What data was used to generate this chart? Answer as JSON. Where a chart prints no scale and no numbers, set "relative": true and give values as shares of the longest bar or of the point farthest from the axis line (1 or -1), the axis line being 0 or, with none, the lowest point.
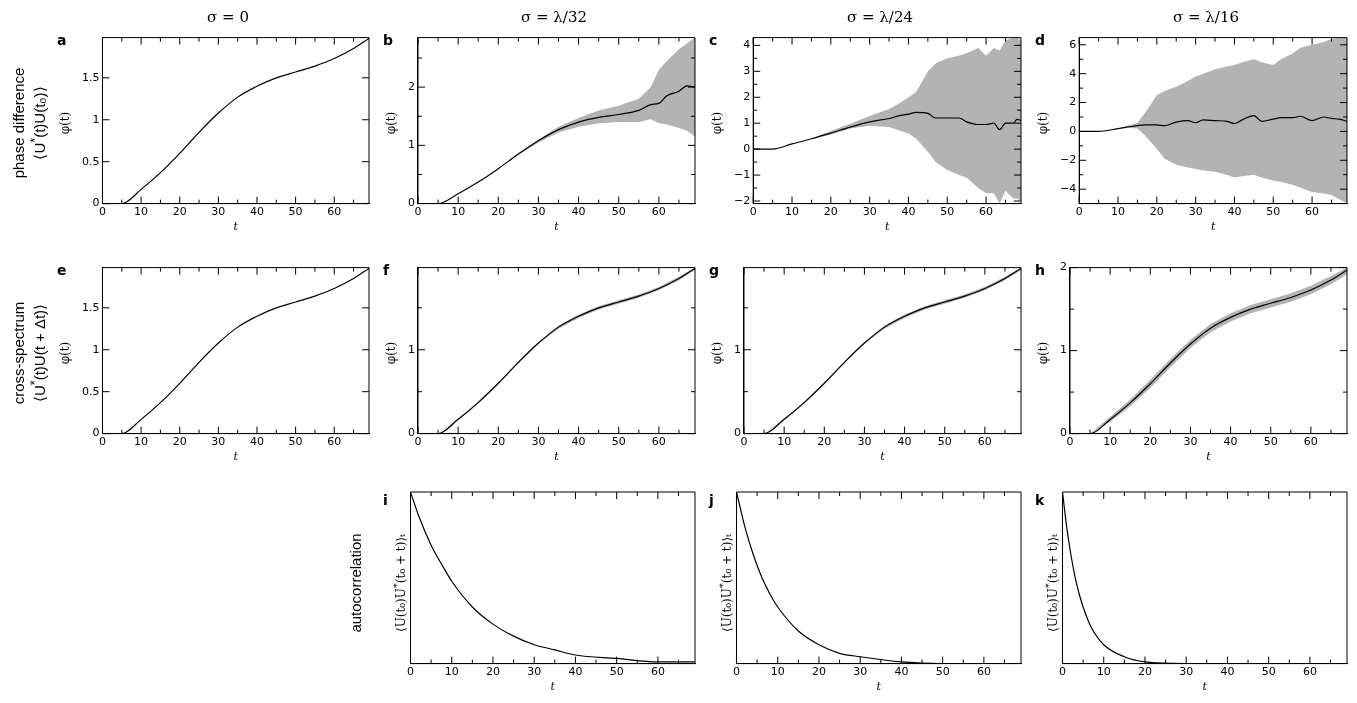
{
  "chart_data": [
    {
      "type": "line",
      "title": "σ = 0",
      "xlabel": "t",
      "ylabel": "φ(t)",
      "annotations": [
        "a",
        "phase difference",
        "⟨U$^{*}$(t)U(t₀)⟩"
      ],
      "x": [
        0,
        5,
        10,
        15,
        20,
        25,
        30,
        35,
        40,
        45,
        50,
        55,
        60,
        65,
        69
      ],
      "series": [
        {
          "color": "#000000",
          "values": [
            0,
            0,
            0.17,
            0.37,
            0.6,
            0.85,
            1.08,
            1.27,
            1.4,
            1.5,
            1.57,
            1.64,
            1.73,
            1.85,
            1.97
          ]
        }
      ],
      "xlim": [
        0,
        69
      ],
      "xticks": [
        0,
        {
          "value": 5,
          "label": null
        },
        10,
        {
          "value": 15,
          "label": null
        },
        20,
        {
          "value": 25,
          "label": null
        },
        30,
        {
          "value": 35,
          "label": null
        },
        40,
        {
          "value": 45,
          "label": null
        },
        50,
        {
          "value": 55,
          "label": null
        },
        60,
        {
          "value": 65,
          "label": null
        }
      ],
      "ylim": [
        0,
        1.98
      ],
      "yticks": [
        0,
        0.5,
        1,
        1.5
      ]
    },
    {
      "type": "line",
      "title": "σ = λ/32",
      "xlabel": "t",
      "ylabel": "φ(t)",
      "annotations": [
        "b"
      ],
      "x": [
        0,
        5,
        10,
        15,
        20,
        25,
        30,
        35,
        40,
        45,
        50,
        55,
        58,
        60,
        62,
        65,
        67,
        69
      ],
      "series": [
        {
          "color": "#000000",
          "values": [
            0,
            0,
            0.17,
            0.37,
            0.6,
            0.85,
            1.08,
            1.27,
            1.4,
            1.48,
            1.53,
            1.6,
            1.7,
            1.72,
            1.85,
            1.93,
            2.02,
            2.0
          ],
          "lower": [
            0,
            0,
            0.17,
            0.37,
            0.6,
            0.84,
            1.05,
            1.22,
            1.32,
            1.38,
            1.4,
            1.4,
            1.45,
            1.38,
            1.36,
            1.3,
            1.25,
            1.15
          ],
          "upper": [
            0,
            0,
            0.17,
            0.37,
            0.6,
            0.87,
            1.1,
            1.32,
            1.47,
            1.6,
            1.68,
            1.8,
            2.0,
            2.3,
            2.45,
            2.65,
            2.75,
            2.85
          ]
        }
      ],
      "xlim": [
        0,
        69
      ],
      "xticks": [
        0,
        {
          "value": 5,
          "label": null
        },
        10,
        {
          "value": 15,
          "label": null
        },
        20,
        {
          "value": 25,
          "label": null
        },
        30,
        {
          "value": 35,
          "label": null
        },
        40,
        {
          "value": 45,
          "label": null
        },
        50,
        {
          "value": 55,
          "label": null
        },
        60,
        {
          "value": 65,
          "label": null
        }
      ],
      "ylim": [
        0,
        2.85
      ],
      "yticks": [
        0,
        {
          "value": 0.5,
          "label": null
        },
        1,
        {
          "value": 1.5,
          "label": null
        },
        2,
        {
          "value": 2.5,
          "label": null
        }
      ]
    },
    {
      "type": "line",
      "title": "σ = λ/24",
      "xlabel": "t",
      "ylabel": "φ(t)",
      "annotations": [
        "c"
      ],
      "x": [
        0,
        5,
        10,
        15,
        20,
        25,
        30,
        35,
        38,
        40,
        42,
        45,
        47,
        50,
        53,
        55,
        58,
        60,
        62,
        63.5,
        65,
        67,
        68,
        69
      ],
      "series": [
        {
          "color": "#000000",
          "values": [
            0,
            0,
            0.2,
            0.4,
            0.62,
            0.85,
            1.05,
            1.18,
            1.3,
            1.35,
            1.42,
            1.38,
            1.2,
            1.2,
            1.2,
            1.05,
            0.95,
            0.95,
            1.0,
            0.75,
            1.0,
            1.0,
            1.15,
            1.1
          ],
          "lower": [
            0,
            0,
            0.2,
            0.4,
            0.55,
            0.8,
            0.9,
            0.85,
            0.7,
            0.6,
            0.4,
            -0.1,
            -0.5,
            -0.8,
            -1.0,
            -1.1,
            -1.5,
            -1.7,
            -1.7,
            -2.1,
            -1.6,
            -1.9,
            -1.9,
            -2.0
          ],
          "upper": [
            0,
            0,
            0.2,
            0.4,
            0.7,
            0.98,
            1.28,
            1.55,
            1.8,
            2.0,
            2.2,
            3.0,
            3.3,
            3.5,
            3.6,
            3.7,
            3.9,
            3.6,
            3.9,
            3.8,
            4.2,
            4.3,
            4.3,
            4.2
          ]
        }
      ],
      "xlim": [
        0,
        69
      ],
      "xticks": [
        0,
        {
          "value": 5,
          "label": null
        },
        10,
        {
          "value": 15,
          "label": null
        },
        20,
        {
          "value": 25,
          "label": null
        },
        30,
        {
          "value": 35,
          "label": null
        },
        40,
        {
          "value": 45,
          "label": null
        },
        50,
        {
          "value": 55,
          "label": null
        },
        60,
        {
          "value": 65,
          "label": null
        }
      ],
      "ylim": [
        -2.1,
        4.3
      ],
      "yticks": [
        -2,
        {
          "value": -1.5,
          "label": null
        },
        -1,
        {
          "value": -0.5,
          "label": null
        },
        0,
        {
          "value": 0.5,
          "label": null
        },
        1,
        {
          "value": 1.5,
          "label": null
        },
        2,
        {
          "value": 2.5,
          "label": null
        },
        3,
        {
          "value": 3.5,
          "label": null
        },
        4
      ]
    },
    {
      "type": "line",
      "title": "σ = λ/16",
      "xlabel": "t",
      "ylabel": "φ(t)",
      "annotations": [
        "d"
      ],
      "x": [
        0,
        5,
        10,
        12,
        15,
        17,
        20,
        22,
        25,
        28,
        30,
        32,
        35,
        38,
        40,
        42,
        45,
        47,
        50,
        52,
        55,
        57,
        60,
        63,
        65,
        67,
        69
      ],
      "series": [
        {
          "color": "#000000",
          "values": [
            0,
            0,
            0.2,
            0.28,
            0.4,
            0.45,
            0.45,
            0.4,
            0.65,
            0.75,
            0.6,
            0.8,
            0.75,
            0.7,
            0.55,
            0.8,
            1.1,
            0.7,
            0.85,
            0.95,
            0.95,
            1.05,
            0.75,
            1.0,
            0.9,
            0.85,
            0.7
          ],
          "lower": [
            0,
            0,
            0.2,
            0.25,
            0.2,
            -0.3,
            -1.2,
            -1.9,
            -2.3,
            -2.5,
            -2.6,
            -2.7,
            -2.8,
            -3.0,
            -3.2,
            -3.1,
            -3.0,
            -3.2,
            -3.4,
            -3.5,
            -3.7,
            -3.9,
            -4.2,
            -4.3,
            -4.4,
            -4.7,
            -5.0
          ],
          "upper": [
            0,
            0,
            0.2,
            0.35,
            0.6,
            1.3,
            2.5,
            2.8,
            3.1,
            3.5,
            3.8,
            4.0,
            4.3,
            4.5,
            4.6,
            4.8,
            5.0,
            4.8,
            4.6,
            5.0,
            5.4,
            5.8,
            6.0,
            6.2,
            6.4,
            6.5,
            6.5
          ]
        }
      ],
      "xlim": [
        0,
        69
      ],
      "xticks": [
        0,
        {
          "value": 5,
          "label": null
        },
        10,
        {
          "value": 15,
          "label": null
        },
        20,
        {
          "value": 25,
          "label": null
        },
        30,
        {
          "value": 35,
          "label": null
        },
        40,
        {
          "value": 45,
          "label": null
        },
        50,
        {
          "value": 55,
          "label": null
        },
        60,
        {
          "value": 65,
          "label": null
        }
      ],
      "ylim": [
        -5,
        6.5
      ],
      "yticks": [
        -4,
        {
          "value": -3,
          "label": null
        },
        -2,
        {
          "value": -1,
          "label": null
        },
        0,
        {
          "value": 1,
          "label": null
        },
        2,
        {
          "value": 3,
          "label": null
        },
        4,
        {
          "value": 5,
          "label": null
        },
        6
      ]
    },
    {
      "type": "line",
      "xlabel": "t",
      "ylabel": "φ(t)",
      "annotations": [
        "e",
        "cross-spectrum",
        "⟨U$^{*}$(t)U(t + Δt)⟩"
      ],
      "x": [
        0,
        5,
        10,
        15,
        20,
        25,
        30,
        35,
        40,
        45,
        50,
        55,
        60,
        65,
        69
      ],
      "series": [
        {
          "color": "#000000",
          "values": [
            0,
            0,
            0.17,
            0.37,
            0.6,
            0.85,
            1.08,
            1.27,
            1.4,
            1.5,
            1.57,
            1.64,
            1.73,
            1.85,
            1.97
          ]
        }
      ],
      "xlim": [
        0,
        69
      ],
      "xticks": [
        0,
        {
          "value": 5,
          "label": null
        },
        10,
        {
          "value": 15,
          "label": null
        },
        20,
        {
          "value": 25,
          "label": null
        },
        30,
        {
          "value": 35,
          "label": null
        },
        40,
        {
          "value": 45,
          "label": null
        },
        50,
        {
          "value": 55,
          "label": null
        },
        60,
        {
          "value": 65,
          "label": null
        }
      ],
      "ylim": [
        0,
        1.98
      ],
      "yticks": [
        0,
        0.5,
        1,
        1.5
      ]
    },
    {
      "type": "line",
      "xlabel": "t",
      "ylabel": "φ(t)",
      "annotations": [
        "f"
      ],
      "x": [
        0,
        5,
        10,
        15,
        20,
        25,
        30,
        35,
        40,
        45,
        50,
        55,
        60,
        65,
        69
      ],
      "series": [
        {
          "color": "#000000",
          "values": [
            0,
            0,
            0.17,
            0.37,
            0.6,
            0.85,
            1.08,
            1.27,
            1.4,
            1.5,
            1.57,
            1.64,
            1.73,
            1.85,
            1.97
          ],
          "lower": [
            0,
            0,
            0.16,
            0.36,
            0.59,
            0.84,
            1.07,
            1.25,
            1.38,
            1.48,
            1.55,
            1.62,
            1.71,
            1.83,
            1.95
          ],
          "upper": [
            0,
            0,
            0.18,
            0.38,
            0.61,
            0.86,
            1.09,
            1.29,
            1.42,
            1.52,
            1.59,
            1.66,
            1.75,
            1.87,
            1.98
          ]
        }
      ],
      "xlim": [
        0,
        69
      ],
      "xticks": [
        0,
        {
          "value": 5,
          "label": null
        },
        10,
        {
          "value": 15,
          "label": null
        },
        20,
        {
          "value": 25,
          "label": null
        },
        30,
        {
          "value": 35,
          "label": null
        },
        40,
        {
          "value": 45,
          "label": null
        },
        50,
        {
          "value": 55,
          "label": null
        },
        60,
        {
          "value": 65,
          "label": null
        }
      ],
      "ylim": [
        0,
        1.98
      ],
      "yticks": [
        0,
        {
          "value": 0.5,
          "label": null
        },
        1,
        {
          "value": 1.5,
          "label": null
        }
      ]
    },
    {
      "type": "line",
      "xlabel": "t",
      "ylabel": "φ(t)",
      "annotations": [
        "g"
      ],
      "x": [
        0,
        5,
        10,
        15,
        20,
        25,
        30,
        35,
        40,
        45,
        50,
        55,
        60,
        65,
        69
      ],
      "series": [
        {
          "color": "#000000",
          "values": [
            0,
            0,
            0.17,
            0.37,
            0.6,
            0.85,
            1.08,
            1.27,
            1.4,
            1.5,
            1.57,
            1.64,
            1.73,
            1.85,
            1.97
          ],
          "lower": [
            0,
            0,
            0.16,
            0.36,
            0.59,
            0.84,
            1.07,
            1.25,
            1.38,
            1.48,
            1.55,
            1.62,
            1.71,
            1.83,
            1.95
          ],
          "upper": [
            0,
            0,
            0.18,
            0.38,
            0.61,
            0.86,
            1.09,
            1.29,
            1.42,
            1.52,
            1.59,
            1.66,
            1.75,
            1.87,
            1.98
          ]
        }
      ],
      "xlim": [
        0,
        69
      ],
      "xticks": [
        0,
        {
          "value": 5,
          "label": null
        },
        10,
        {
          "value": 15,
          "label": null
        },
        20,
        {
          "value": 25,
          "label": null
        },
        30,
        {
          "value": 35,
          "label": null
        },
        40,
        {
          "value": 45,
          "label": null
        },
        50,
        {
          "value": 55,
          "label": null
        },
        60,
        {
          "value": 65,
          "label": null
        }
      ],
      "ylim": [
        0,
        1.98
      ],
      "yticks": [
        0,
        {
          "value": 0.5,
          "label": null
        },
        1,
        {
          "value": 1.5,
          "label": null
        }
      ]
    },
    {
      "type": "line",
      "xlabel": "t",
      "ylabel": "φ(t)",
      "annotations": [
        "h"
      ],
      "x": [
        0,
        5,
        10,
        15,
        20,
        25,
        30,
        35,
        40,
        45,
        50,
        55,
        60,
        65,
        69
      ],
      "series": [
        {
          "color": "#000000",
          "values": [
            0,
            0,
            0.17,
            0.37,
            0.6,
            0.85,
            1.08,
            1.27,
            1.4,
            1.5,
            1.57,
            1.64,
            1.73,
            1.85,
            1.97
          ],
          "lower": [
            0,
            0,
            0.14,
            0.33,
            0.55,
            0.8,
            1.03,
            1.22,
            1.35,
            1.45,
            1.52,
            1.59,
            1.68,
            1.8,
            1.92
          ],
          "upper": [
            0,
            0,
            0.2,
            0.41,
            0.65,
            0.9,
            1.13,
            1.32,
            1.45,
            1.55,
            1.62,
            1.69,
            1.78,
            1.9,
            2.0
          ]
        }
      ],
      "xlim": [
        0,
        69
      ],
      "xticks": [
        0,
        {
          "value": 5,
          "label": null
        },
        10,
        {
          "value": 15,
          "label": null
        },
        20,
        {
          "value": 25,
          "label": null
        },
        30,
        {
          "value": 35,
          "label": null
        },
        40,
        {
          "value": 45,
          "label": null
        },
        50,
        {
          "value": 55,
          "label": null
        },
        60,
        {
          "value": 65,
          "label": null
        }
      ],
      "ylim": [
        0,
        2
      ],
      "yticks": [
        0,
        {
          "value": 0.5,
          "label": null
        },
        1,
        {
          "value": 1.5,
          "label": null
        },
        2
      ]
    },
    {
      "type": "line",
      "xlabel": "t",
      "ylabel": "⟨U(t₀)U$^{*}$(t₀ + t)⟩ₜ",
      "annotations": [
        "i",
        "autocorrelation"
      ],
      "relative": true,
      "tick_labels": "x",
      "x": [
        0,
        2,
        5,
        8,
        10,
        15,
        20,
        25,
        30,
        35,
        40,
        50,
        60,
        69
      ],
      "series": [
        {
          "color": "#000000",
          "values": [
            1,
            0.86,
            0.69,
            0.56,
            0.48,
            0.33,
            0.23,
            0.16,
            0.11,
            0.08,
            0.05,
            0.03,
            0.01,
            0.01
          ]
        }
      ],
      "xlim": [
        0,
        69
      ],
      "xticks": [
        0,
        {
          "value": 5,
          "label": null
        },
        10,
        {
          "value": 15,
          "label": null
        },
        20,
        {
          "value": 25,
          "label": null
        },
        30,
        {
          "value": 35,
          "label": null
        },
        40,
        {
          "value": 45,
          "label": null
        },
        50,
        {
          "value": 55,
          "label": null
        },
        60,
        {
          "value": 65,
          "label": null
        }
      ]
    },
    {
      "type": "line",
      "xlabel": "t",
      "ylabel": "⟨U(t₀)U$^{*}$(t₀ + t)⟩ₜ",
      "annotations": [
        "j"
      ],
      "relative": true,
      "tick_labels": "x",
      "x": [
        0,
        2,
        4,
        6,
        8,
        10,
        15,
        20,
        25,
        30,
        40,
        50,
        69
      ],
      "series": [
        {
          "color": "#000000",
          "values": [
            1,
            0.8,
            0.64,
            0.51,
            0.41,
            0.33,
            0.19,
            0.11,
            0.06,
            0.04,
            0.01,
            0,
            0
          ]
        }
      ],
      "xlim": [
        0,
        69
      ],
      "xticks": [
        0,
        {
          "value": 5,
          "label": null
        },
        10,
        {
          "value": 15,
          "label": null
        },
        20,
        {
          "value": 25,
          "label": null
        },
        30,
        {
          "value": 35,
          "label": null
        },
        40,
        {
          "value": 45,
          "label": null
        },
        50,
        {
          "value": 55,
          "label": null
        },
        60,
        {
          "value": 65,
          "label": null
        }
      ]
    },
    {
      "type": "line",
      "xlabel": "t",
      "ylabel": "⟨U(t₀)U$^{*}$(t₀ + t)⟩ₜ",
      "annotations": [
        "k"
      ],
      "relative": true,
      "tick_labels": "x",
      "x": [
        0,
        1,
        2,
        3,
        4,
        5,
        7,
        10,
        15,
        20,
        30,
        69
      ],
      "series": [
        {
          "color": "#000000",
          "values": [
            1,
            0.8,
            0.64,
            0.51,
            0.41,
            0.33,
            0.21,
            0.11,
            0.04,
            0.01,
            0,
            0
          ]
        }
      ],
      "xlim": [
        0,
        69
      ],
      "xticks": [
        0,
        {
          "value": 5,
          "label": null
        },
        10,
        {
          "value": 15,
          "label": null
        },
        20,
        {
          "value": 25,
          "label": null
        },
        30,
        {
          "value": 35,
          "label": null
        },
        40,
        {
          "value": 45,
          "label": null
        },
        50,
        {
          "value": 55,
          "label": null
        },
        60,
        {
          "value": 65,
          "label": null
        }
      ]
    }
  ]
}
